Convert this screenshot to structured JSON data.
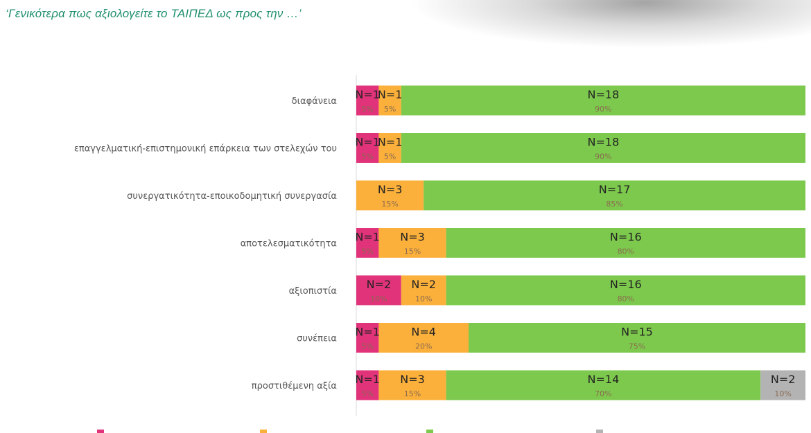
{
  "title": "‘Γενικότερα πως αξιολογείτε το ΤΑΙΠΕΔ ως προς την …’",
  "chart_data": {
    "type": "bar",
    "orientation": "horizontal",
    "stacked": true,
    "title": "",
    "xlabel": "",
    "ylabel": "",
    "xlim": [
      0,
      100
    ],
    "categories": [
      "διαφάνεια",
      "επαγγελματική-επιστημονική επάρκεια των στελεχών του",
      "συνεργατικότητα-εποικοδομητική συνεργασία",
      "αποτελεσματικότητα",
      "αξιοπιστία",
      "συνέπεια",
      "προστιθέμενη αξία"
    ],
    "series": [
      {
        "color": "#e0337a",
        "values": [
          5,
          5,
          0,
          5,
          10,
          5,
          5
        ],
        "counts": [
          "N=1",
          "N=1",
          "",
          "N=1",
          "N=2",
          "N=1",
          "N=1"
        ],
        "percent_labels": [
          "5%",
          "5%",
          "",
          "5%",
          "10%",
          "5%",
          "5%"
        ]
      },
      {
        "color": "#fbb03b",
        "values": [
          5,
          5,
          15,
          15,
          10,
          20,
          15
        ],
        "counts": [
          "N=1",
          "N=1",
          "N=3",
          "N=3",
          "N=2",
          "N=4",
          "N=3"
        ],
        "percent_labels": [
          "5%",
          "5%",
          "15%",
          "15%",
          "10%",
          "20%",
          "15%"
        ]
      },
      {
        "color": "#7dc94d",
        "values": [
          90,
          90,
          85,
          80,
          80,
          75,
          70
        ],
        "counts": [
          "N=18",
          "N=18",
          "N=17",
          "N=16",
          "N=16",
          "N=15",
          "N=14"
        ],
        "percent_labels": [
          "90%",
          "90%",
          "85%",
          "80%",
          "80%",
          "75%",
          "70%"
        ]
      },
      {
        "color": "#b3b3b3",
        "values": [
          0,
          0,
          0,
          0,
          0,
          0,
          10
        ],
        "counts": [
          "",
          "",
          "",
          "",
          "",
          "",
          "N=2"
        ],
        "percent_labels": [
          "",
          "",
          "",
          "",
          "",
          "",
          "10%"
        ]
      }
    ],
    "legend": {
      "placement": "bottom",
      "entries_visible": false
    }
  }
}
